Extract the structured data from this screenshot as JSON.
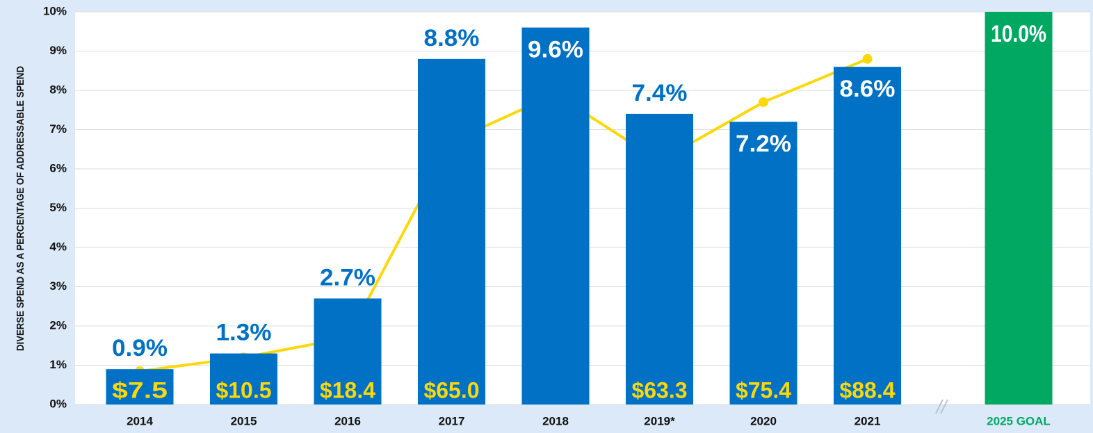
{
  "chart_data": {
    "type": "bar",
    "ylabel": "DIVERSE SPEND AS A PERCENTAGE OF ADDRESSABLE SPEND",
    "categories": [
      "2014",
      "2015",
      "2016",
      "2017",
      "2018",
      "2019*",
      "2020",
      "2021",
      "2025 GOAL"
    ],
    "series": [
      {
        "values": [
          0.9,
          1.3,
          2.7,
          8.8,
          9.6,
          7.4,
          7.2,
          8.6,
          10.0
        ],
        "value_labels": [
          "0.9%",
          "1.3%",
          "2.7%",
          "8.8%",
          "9.6%",
          "7.4%",
          "7.2%",
          "8.6%",
          "10.0%"
        ],
        "colors": [
          "#0071c5",
          "#0071c5",
          "#0071c5",
          "#0071c5",
          "#0071c5",
          "#0071c5",
          "#0071c5",
          "#0071c5",
          "#00a862"
        ]
      },
      {
        "type": "line",
        "color": "#fcd80a",
        "values": [
          0.85,
          1.2,
          1.7,
          6.7,
          7.9,
          6.2,
          7.7,
          8.8,
          null
        ]
      },
      {
        "type": "label",
        "color": "#fcd80a",
        "values": [
          7.5,
          10.5,
          18.4,
          65.0,
          null,
          63.3,
          75.4,
          88.4,
          null
        ],
        "value_labels": [
          "$7.5",
          "$10.5",
          "$18.4",
          "$65.0",
          null,
          "$63.3",
          "$75.4",
          "$88.4",
          null
        ]
      }
    ],
    "ylim": [
      0,
      10
    ],
    "yticks": [
      {
        "value": 0,
        "label": "0%"
      },
      {
        "value": 1,
        "label": "1%"
      },
      {
        "value": 2,
        "label": "2%"
      },
      {
        "value": 3,
        "label": "3%"
      },
      {
        "value": 4,
        "label": "4%"
      },
      {
        "value": 5,
        "label": "5%"
      },
      {
        "value": 6,
        "label": "6%"
      },
      {
        "value": 7,
        "label": "7%"
      },
      {
        "value": 8,
        "label": "8%"
      },
      {
        "value": 9,
        "label": "9%"
      },
      {
        "value": 10,
        "label": "10%"
      }
    ],
    "grid": true
  }
}
